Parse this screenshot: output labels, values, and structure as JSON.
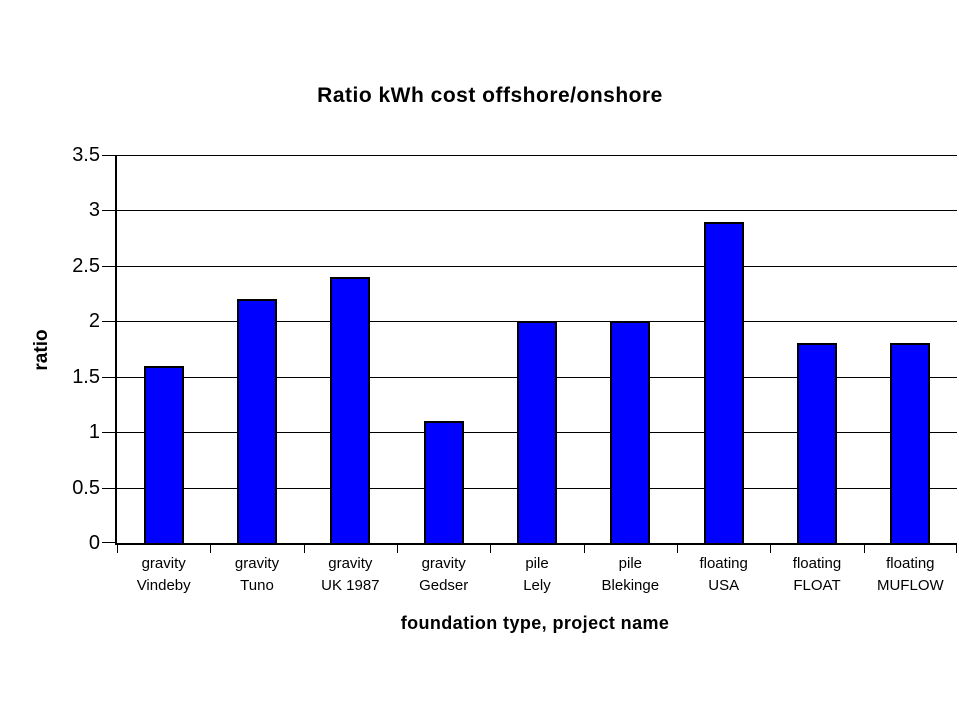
{
  "title": "Ratio kWh cost offshore/onshore",
  "chart_data": {
    "type": "bar",
    "title": "Ratio kWh cost offshore/onshore",
    "xlabel": "foundation type, project name",
    "ylabel": "ratio",
    "categories": [
      "gravity\nVindeby",
      "gravity\nTuno",
      "gravity\nUK 1987",
      "gravity\nGedser",
      "pile\nLely",
      "pile\nBlekinge",
      "floating\nUSA",
      "floating\nFLOAT",
      "floating\nMUFLOW"
    ],
    "values": [
      1.6,
      2.2,
      2.4,
      1.1,
      2,
      2,
      2.9,
      1.8,
      1.8
    ],
    "ylim": [
      0,
      3.5
    ],
    "ytick_step": 0.5,
    "grid": true,
    "legend_position": "none",
    "bar_color": "#0000ff",
    "bar_border_color": "#000000",
    "axis_color": "#000000",
    "background": "#ffffff"
  }
}
